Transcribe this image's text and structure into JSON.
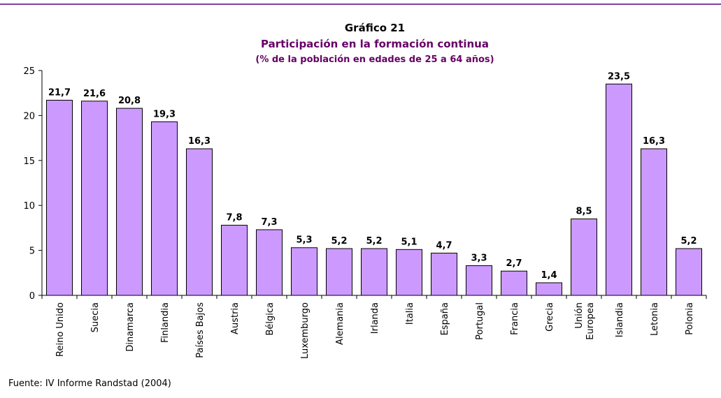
{
  "chart_data": {
    "type": "bar",
    "title": "Gráfico 21",
    "subtitle": "Participación en la formación continua",
    "subtitle2": "(% de la población en edades de 25 a 64 años)",
    "categories": [
      "Reino Unido",
      "Suecia",
      "Dinamarca",
      "Finlandia",
      "Países Bajos",
      "Austria",
      "Bélgica",
      "Luxemburgo",
      "Alemania",
      "Irlanda",
      "Italia",
      "España",
      "Portugal",
      "Francia",
      "Grecia",
      "Unión\nEuropea",
      "Islandia",
      "Letonia",
      "Polonia"
    ],
    "values": [
      21.7,
      21.6,
      20.8,
      19.3,
      16.3,
      7.8,
      7.3,
      5.3,
      5.2,
      5.2,
      5.1,
      4.7,
      3.3,
      2.7,
      1.4,
      8.5,
      23.5,
      16.3,
      5.2
    ],
    "value_labels": [
      "21,7",
      "21,6",
      "20,8",
      "19,3",
      "16,3",
      "7,8",
      "7,3",
      "5,3",
      "5,2",
      "5,2",
      "5,1",
      "4,7",
      "3,3",
      "2,7",
      "1,4",
      "8,5",
      "23,5",
      "16,3",
      "5,2"
    ],
    "color": "#cc99ff",
    "ylim": [
      0,
      25
    ],
    "yticks": [
      0,
      5,
      10,
      15,
      20,
      25
    ],
    "grid": false,
    "source": "Fuente: IV Informe Randstad (2004)"
  }
}
